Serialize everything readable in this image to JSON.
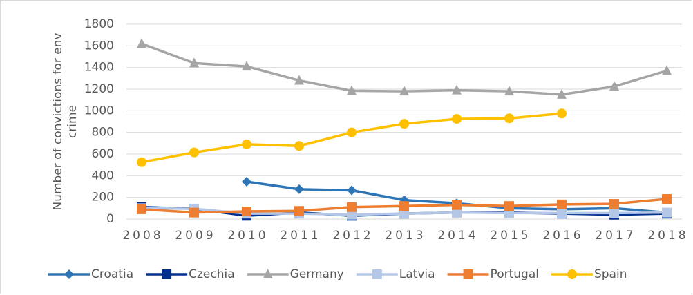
{
  "chart_data": {
    "type": "line",
    "y_label": "Number of convictions for env crime",
    "categories": [
      "2008",
      "2009",
      "2010",
      "2011",
      "2012",
      "2013",
      "2014",
      "2015",
      "2016",
      "2017",
      "2018"
    ],
    "series": [
      {
        "name": "Croatia",
        "color": "#2e75b6",
        "marker": "diamond",
        "values": [
          null,
          null,
          345,
          275,
          265,
          175,
          145,
          100,
          90,
          100,
          60
        ]
      },
      {
        "name": "Czechia",
        "color": "#002f8e",
        "marker": "square",
        "values": [
          110,
          95,
          30,
          60,
          30,
          50,
          60,
          60,
          50,
          40,
          50
        ]
      },
      {
        "name": "Germany",
        "color": "#a5a5a5",
        "marker": "triangle",
        "values": [
          1620,
          1440,
          1410,
          1280,
          1185,
          1180,
          1190,
          1180,
          1150,
          1225,
          1370
        ]
      },
      {
        "name": "Latvia",
        "color": "#b4c7e7",
        "marker": "square",
        "values": [
          100,
          95,
          50,
          50,
          40,
          50,
          60,
          55,
          55,
          55,
          60
        ]
      },
      {
        "name": "Portugal",
        "color": "#ed7d31",
        "marker": "square",
        "values": [
          90,
          60,
          70,
          75,
          110,
          120,
          130,
          120,
          135,
          140,
          185
        ]
      },
      {
        "name": "Spain",
        "color": "#ffc000",
        "marker": "circle",
        "values": [
          525,
          615,
          690,
          675,
          800,
          880,
          925,
          930,
          975,
          null,
          null
        ]
      }
    ],
    "ylim": [
      0,
      1800
    ],
    "yticks": [
      0,
      200,
      400,
      600,
      800,
      1000,
      1200,
      1400,
      1600,
      1800
    ],
    "grid": true,
    "legend": "bottom"
  }
}
